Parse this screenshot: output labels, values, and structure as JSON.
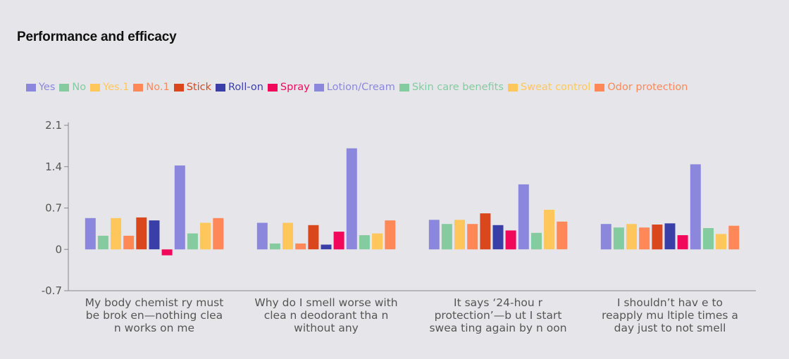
{
  "chart_data": {
    "type": "bar",
    "title": "Performance and efficacy",
    "xlabel": "",
    "ylabel": "",
    "ylim": [
      -0.7,
      2.1
    ],
    "yticks": [
      "2.1",
      "1.4",
      "0.7",
      "0",
      "-0.7"
    ],
    "ytick_values": [
      2.1,
      1.4,
      0.7,
      0,
      -0.7
    ],
    "grid": false,
    "legend_position": "top",
    "categories": [
      [
        "My body chemist ry must",
        "be brok en—nothing clea",
        "n works on me"
      ],
      [
        "Why do I smell worse with",
        "clea n deodorant tha n",
        "without any"
      ],
      [
        "It says ‘24-hou r",
        "protection’—b ut I start",
        "swea ting again by n oon"
      ],
      [
        "I shouldn’t hav e to",
        "reapply mu ltiple times a",
        "day just to not smell"
      ]
    ],
    "series": [
      {
        "name": "Yes",
        "color": "#8b87dd",
        "values": [
          0.53,
          0.45,
          0.5,
          0.43
        ]
      },
      {
        "name": "No",
        "color": "#84cba0",
        "values": [
          0.23,
          0.1,
          0.43,
          0.37
        ]
      },
      {
        "name": "Yes.1",
        "color": "#ffc65c",
        "values": [
          0.53,
          0.45,
          0.5,
          0.43
        ]
      },
      {
        "name": "No.1",
        "color": "#ff8758",
        "values": [
          0.23,
          0.1,
          0.43,
          0.37
        ]
      },
      {
        "name": "Stick",
        "color": "#da471c",
        "values": [
          0.54,
          0.41,
          0.61,
          0.42
        ]
      },
      {
        "name": "Roll-on",
        "color": "#3a3fa8",
        "values": [
          0.49,
          0.08,
          0.41,
          0.44
        ]
      },
      {
        "name": "Spray",
        "color": "#f2085a",
        "values": [
          -0.1,
          0.3,
          0.32,
          0.24
        ]
      },
      {
        "name": "Lotion/Cream",
        "color": "#8b87dd",
        "values": [
          1.42,
          1.71,
          1.1,
          1.44
        ]
      },
      {
        "name": "Skin care benefits",
        "color": "#84cba0",
        "values": [
          0.27,
          0.24,
          0.28,
          0.36
        ]
      },
      {
        "name": "Sweat control",
        "color": "#ffc65c",
        "values": [
          0.45,
          0.27,
          0.67,
          0.26
        ]
      },
      {
        "name": "Odor protection",
        "color": "#ff8758",
        "values": [
          0.53,
          0.49,
          0.47,
          0.4
        ]
      }
    ]
  }
}
